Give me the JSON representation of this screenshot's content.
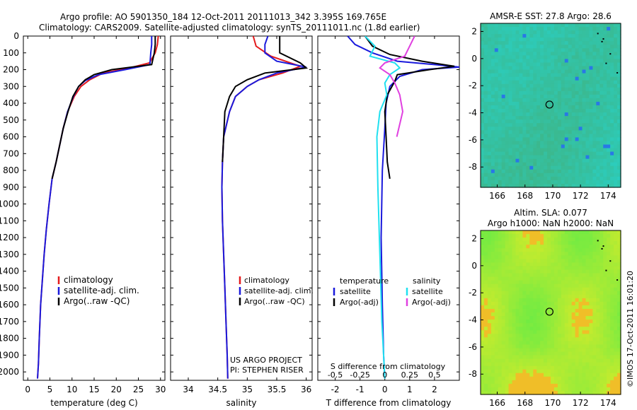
{
  "header": {
    "line1": "Argo profile: AO 5901350_184 12-Oct-2011 20111013_342 3.395S 169.765E",
    "line2": "Climatology: CARS2009. Satellite-adjusted climatology: synTS_20111011.nc (1.8d earlier)"
  },
  "colors": {
    "climatology": "#e41a1c",
    "satellite": "#1a1adc",
    "argo": "#000000",
    "sat_salinity": "#20e0f0",
    "argo_salinity": "#e040e0"
  },
  "chart_data": [
    {
      "type": "line",
      "panel": "temperature",
      "xlabel": "temperature (deg C)",
      "xlim": [
        -1,
        31
      ],
      "xticks": [
        0,
        5,
        10,
        15,
        20,
        25,
        30
      ],
      "ylim": [
        2050,
        0
      ],
      "yticks": [
        0,
        100,
        200,
        300,
        400,
        500,
        600,
        700,
        800,
        900,
        1000,
        1100,
        1200,
        1300,
        1400,
        1500,
        1600,
        1700,
        1800,
        1900,
        2000
      ],
      "legend": [
        "climatology",
        "satellite-adj. clim.",
        "Argo(..raw -QC)"
      ],
      "series": [
        {
          "name": "climatology",
          "color": "climatology",
          "x": [
            29.5,
            29.3,
            28.8,
            27.5,
            23,
            17,
            14,
            12,
            10.5,
            9,
            8,
            7.2,
            6.4,
            5.5,
            4.8,
            4.2,
            3.7,
            3.3,
            2.9,
            2.6,
            2.4,
            2.2
          ],
          "y": [
            0,
            50,
            100,
            160,
            190,
            220,
            260,
            300,
            360,
            450,
            550,
            650,
            750,
            850,
            1000,
            1150,
            1300,
            1450,
            1600,
            1800,
            1950,
            2040
          ]
        },
        {
          "name": "satellite-adj. clim.",
          "color": "satellite",
          "x": [
            28,
            28,
            27.8,
            27.6,
            22,
            16,
            13,
            11.5,
            10.3,
            9,
            8,
            7.2,
            6.4,
            5.5,
            4.8,
            4.2,
            3.7,
            3.3,
            2.9,
            2.6,
            2.4,
            2.2
          ],
          "y": [
            0,
            50,
            100,
            170,
            200,
            230,
            265,
            300,
            360,
            450,
            550,
            650,
            750,
            850,
            1000,
            1150,
            1300,
            1450,
            1600,
            1800,
            1950,
            2040
          ]
        },
        {
          "name": "Argo(..raw -QC)",
          "color": "argo",
          "x": [
            28.8,
            28.8,
            28.6,
            28,
            19,
            15,
            13,
            11.5,
            10.2,
            9.1,
            8,
            7.2,
            6.4,
            5.5
          ],
          "y": [
            0,
            50,
            100,
            170,
            200,
            230,
            260,
            300,
            360,
            450,
            550,
            650,
            750,
            850
          ]
        }
      ]
    },
    {
      "type": "line",
      "panel": "salinity",
      "xlabel": "salinity",
      "xlim": [
        33.7,
        36.1
      ],
      "xticks": [
        34,
        34.5,
        35,
        35.5,
        36
      ],
      "ylim": [
        2050,
        0
      ],
      "legend": [
        "climatology",
        "satellite-adj. clim.",
        "Argo(..raw -QC)"
      ],
      "annotations": [
        "US ARGO PROJECT",
        "PI: STEPHEN RISER"
      ],
      "series": [
        {
          "name": "climatology",
          "color": "climatology",
          "x": [
            35.1,
            35.15,
            35.4,
            35.9,
            35.6,
            35.2,
            35.0,
            34.8,
            34.7,
            34.6,
            34.58,
            34.57,
            34.58,
            34.6,
            34.62,
            34.64,
            34.66,
            34.67
          ],
          "y": [
            0,
            60,
            120,
            180,
            220,
            260,
            300,
            360,
            450,
            600,
            750,
            900,
            1100,
            1300,
            1500,
            1700,
            1900,
            2040
          ]
        },
        {
          "name": "satellite-adj. clim.",
          "color": "satellite",
          "x": [
            35.35,
            35.3,
            35.3,
            35.5,
            36.0,
            35.5,
            35.2,
            35.0,
            34.8,
            34.7,
            34.6,
            34.58,
            34.57,
            34.58,
            34.6,
            34.62,
            34.64,
            34.66,
            34.67
          ],
          "y": [
            0,
            50,
            100,
            150,
            185,
            220,
            260,
            300,
            360,
            450,
            600,
            750,
            900,
            1100,
            1300,
            1500,
            1700,
            1900,
            2040
          ]
        },
        {
          "name": "Argo(..raw -QC)",
          "color": "argo",
          "x": [
            35.55,
            35.55,
            35.55,
            35.9,
            36.0,
            35.3,
            35.0,
            34.8,
            34.7,
            34.62,
            34.6,
            34.58
          ],
          "y": [
            0,
            50,
            100,
            160,
            190,
            220,
            260,
            300,
            360,
            450,
            600,
            750
          ]
        }
      ]
    },
    {
      "type": "line",
      "panel": "difference",
      "xlabel": "T difference from climatology",
      "xlim": [
        -2.7,
        3.0
      ],
      "xticks": [
        -2,
        -1,
        0,
        1,
        2
      ],
      "s_label": "S difference from climatology",
      "s_xlim": [
        -0.675,
        0.75
      ],
      "s_ticks": [
        -0.5,
        -0.25,
        0,
        0.25,
        0.5
      ],
      "s_tick_labels": [
        "-0.5",
        "-0.25",
        "0",
        "0.25",
        "0.5"
      ],
      "ylim": [
        2050,
        0
      ],
      "legend_left_title": "temperature",
      "legend_right_title": "salinity",
      "legend_left": [
        "satellite",
        "Argo(-adj)"
      ],
      "legend_right": [
        "satellite",
        "Argo(-adj)"
      ],
      "series": [
        {
          "name": "satellite",
          "group": "temperature",
          "color": "satellite",
          "x": [
            -1.5,
            -1.2,
            -0.5,
            0.5,
            2.0,
            3.0,
            1.5,
            0.6,
            0.2,
            0.05,
            0.0,
            -0.1,
            -0.15,
            -0.1,
            -0.05,
            0.0
          ],
          "y": [
            0,
            50,
            100,
            150,
            170,
            185,
            200,
            240,
            300,
            400,
            550,
            800,
            1200,
            1600,
            1900,
            2040
          ]
        },
        {
          "name": "Argo(-adj)",
          "group": "temperature",
          "color": "argo",
          "x": [
            -0.8,
            -0.5,
            0.2,
            1.5,
            2.8,
            1.8,
            0.5,
            0.4,
            0.1,
            0.0,
            0.05,
            0.1,
            0.2
          ],
          "y": [
            0,
            60,
            110,
            150,
            180,
            200,
            230,
            270,
            350,
            450,
            600,
            750,
            850
          ]
        },
        {
          "name": "satellite",
          "group": "salinity",
          "color": "sat_salinity",
          "x": [
            -0.2,
            -0.1,
            -0.15,
            0.1,
            0.15,
            0.05,
            0.0,
            0.02,
            -0.05,
            -0.08,
            -0.07,
            -0.05,
            -0.03,
            0.0
          ],
          "y": [
            0,
            60,
            120,
            160,
            190,
            230,
            280,
            350,
            450,
            600,
            900,
            1300,
            1700,
            2040
          ]
        },
        {
          "name": "Argo(-adj)",
          "group": "salinity",
          "color": "argo_salinity",
          "x": [
            0.3,
            0.25,
            0.2,
            0.0,
            -0.05,
            0.05,
            0.1,
            0.15,
            0.18,
            0.12
          ],
          "y": [
            0,
            60,
            120,
            160,
            190,
            230,
            280,
            350,
            450,
            600
          ]
        }
      ]
    },
    {
      "type": "heatmap",
      "panel": "sst-map",
      "title": "AMSR-E SST: 27.8 Argo: 28.6",
      "xlim": [
        164.8,
        174.9
      ],
      "ylim": [
        -9.5,
        2.6
      ],
      "xticks": [
        166,
        168,
        170,
        172,
        174
      ],
      "yticks": [
        2,
        0,
        -2,
        -4,
        -6,
        -8
      ],
      "marker": {
        "lon": 169.765,
        "lat": -3.395
      }
    },
    {
      "type": "heatmap",
      "panel": "sla-map",
      "title_line1": "Altim. SLA: 0.077",
      "title_line2": "Argo h1000: NaN h2000: NaN",
      "xlim": [
        164.8,
        174.9
      ],
      "ylim": [
        -9.5,
        2.6
      ],
      "xticks": [
        166,
        168,
        170,
        172,
        174
      ],
      "yticks": [
        2,
        0,
        -2,
        -4,
        -6,
        -8
      ],
      "marker": {
        "lon": 169.765,
        "lat": -3.395
      }
    }
  ],
  "watermark": "©IMOS 17-Oct-2011 16:01:20"
}
